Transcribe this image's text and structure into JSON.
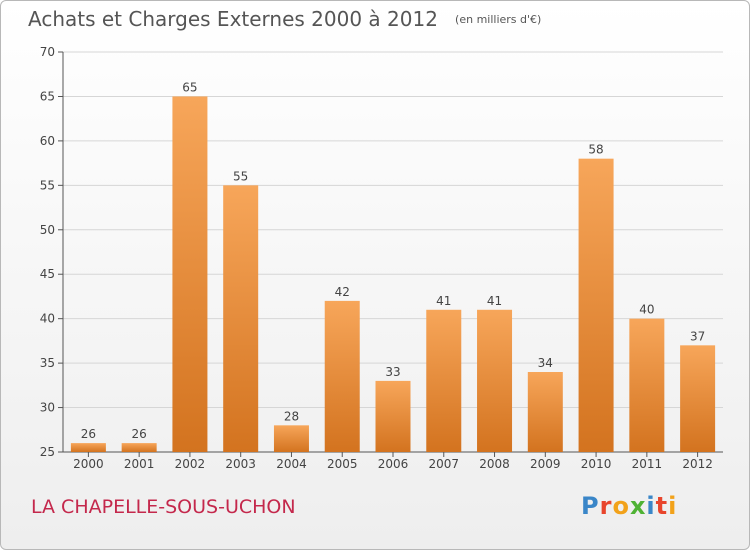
{
  "header": {
    "title": "Achats et Charges Externes 2000 à 2012",
    "subtitle": "(en milliers d'€)"
  },
  "footer": {
    "town": "LA CHAPELLE-SOUS-UCHON",
    "logo_text": "Proxiti",
    "logo_colors": [
      "#3a86c8",
      "#e8452c",
      "#f2a21a",
      "#4fb234",
      "#3a86c8",
      "#e8452c",
      "#f2a21a"
    ]
  },
  "colors": {
    "bar_top": "#f7a65a",
    "bar_bottom": "#d3731f",
    "grid": "#d6d6d6",
    "axis": "#555555",
    "label": "#444444"
  },
  "chart_data": {
    "type": "bar",
    "categories": [
      "2000",
      "2001",
      "2002",
      "2003",
      "2004",
      "2005",
      "2006",
      "2007",
      "2008",
      "2009",
      "2010",
      "2011",
      "2012"
    ],
    "values": [
      26,
      26,
      65,
      55,
      28,
      42,
      33,
      41,
      41,
      34,
      58,
      40,
      37
    ],
    "title": "Achats et Charges Externes 2000 à 2012",
    "subtitle": "(en milliers d'€)",
    "xlabel": "",
    "ylabel": "",
    "ylim": [
      25,
      70
    ],
    "yticks": [
      25,
      30,
      35,
      40,
      45,
      50,
      55,
      60,
      65,
      70
    ],
    "grid": true,
    "data_labels": true
  }
}
